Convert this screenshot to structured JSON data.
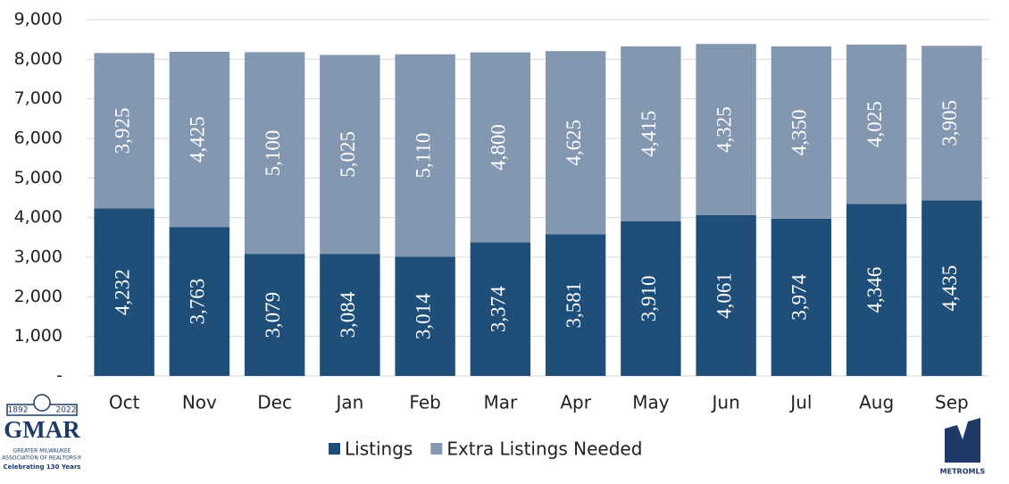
{
  "chart_data": {
    "type": "stacked-bar",
    "categories": [
      "Oct",
      "Nov",
      "Dec",
      "Jan",
      "Feb",
      "Mar",
      "Apr",
      "May",
      "Jun",
      "Jul",
      "Aug",
      "Sep"
    ],
    "series": [
      {
        "name": "Listings",
        "color": "#1f4e79",
        "values": [
          4232,
          3763,
          3079,
          3084,
          3014,
          3374,
          3581,
          3910,
          4061,
          3974,
          4346,
          4435
        ],
        "value_labels": [
          "4,232",
          "3,763",
          "3,079",
          "3,084",
          "3,014",
          "3,374",
          "3,581",
          "3,910",
          "4,061",
          "3,974",
          "4,346",
          "4,435"
        ]
      },
      {
        "name": "Extra Listings Needed",
        "color": "#8497b0",
        "values": [
          3925,
          4425,
          5100,
          5025,
          5110,
          4800,
          4625,
          4415,
          4325,
          4350,
          4025,
          3905
        ],
        "value_labels": [
          "3,925",
          "4,425",
          "5,100",
          "5,025",
          "5,110",
          "4,800",
          "4,625",
          "4,415",
          "4,325",
          "4,350",
          "4,025",
          "3,905"
        ]
      }
    ],
    "ylim": [
      0,
      9000
    ],
    "yticks": [
      {
        "value": 0,
        "label": "-"
      },
      {
        "value": 1000,
        "label": "1,000"
      },
      {
        "value": 2000,
        "label": "2,000"
      },
      {
        "value": 3000,
        "label": "3,000"
      },
      {
        "value": 4000,
        "label": "4,000"
      },
      {
        "value": 5000,
        "label": "5,000"
      },
      {
        "value": 6000,
        "label": "6,000"
      },
      {
        "value": 7000,
        "label": "7,000"
      },
      {
        "value": 8000,
        "label": "8,000"
      },
      {
        "value": 9000,
        "label": "9,000"
      }
    ],
    "grid": true,
    "legend": "bottom"
  },
  "logos": {
    "gmar": {
      "start": "1892",
      "end": "2022",
      "name": "GMAR",
      "line1": "GREATER MILWAUKEE",
      "line2": "ASSOCIATION OF REALTORS®",
      "tagline": "Celebrating 130 Years"
    },
    "metromls": {
      "name": "METROMLS"
    }
  }
}
